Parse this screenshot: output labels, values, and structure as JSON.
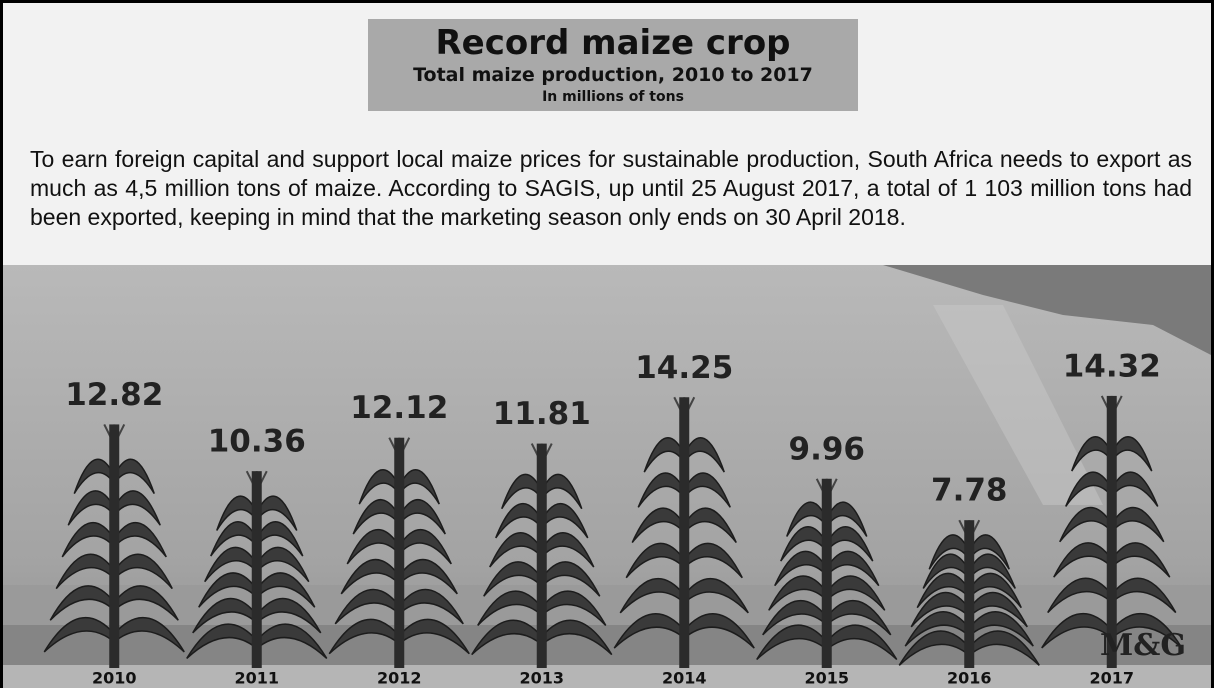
{
  "chart_data": {
    "type": "bar",
    "title": "Record maize crop",
    "subtitle": "Total maize production, 2010 to 2017",
    "unit_note": "In millions of tons",
    "description": "To earn foreign capital and support local maize prices for sustainable production, South Africa needs to export as much as 4,5 million tons of maize. According to SAGIS, up until 25 August 2017, a total of 1 103 million tons had been exported, keeping in mind that the marketing season only ends on 30 April 2018.",
    "source": "M&G",
    "categories": [
      "2010",
      "2011",
      "2012",
      "2013",
      "2014",
      "2015",
      "2016",
      "2017"
    ],
    "values": [
      12.82,
      10.36,
      12.12,
      11.81,
      14.25,
      9.96,
      7.78,
      14.32
    ],
    "color": "#2b2b2b"
  }
}
